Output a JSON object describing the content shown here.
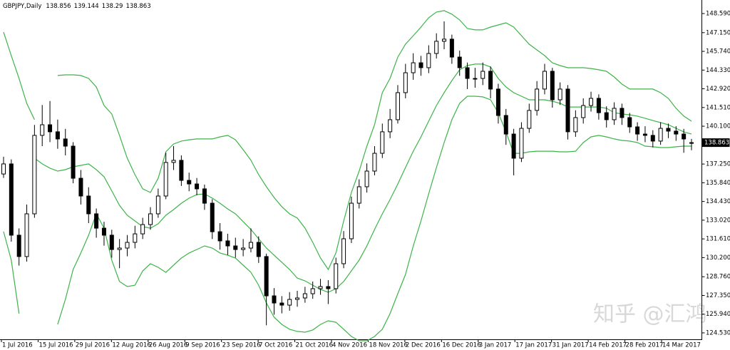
{
  "chart_data": {
    "type": "candlestick",
    "symbol": "GBPJPY,Daily",
    "open": [
      136.5,
      137.26,
      131.89,
      130.28,
      133.5,
      139.41,
      140.21,
      139.68,
      139.14,
      138.6,
      136.18,
      134.84,
      133.5,
      132.42,
      131.89,
      130.81,
      130.92,
      131.35,
      131.99,
      132.69,
      133.5,
      134.84,
      137.37,
      137.53,
      136.02,
      135.75,
      135.38,
      134.3,
      132.15,
      131.46,
      131.08,
      130.81,
      130.92,
      131.35,
      130.28,
      127.32,
      126.78,
      126.62,
      127.05,
      127.16,
      127.48,
      127.86,
      128.02,
      127.86,
      129.74,
      131.62,
      134.3,
      135.54,
      136.72,
      138.06,
      139.68,
      140.59,
      142.63,
      144.13,
      144.88,
      144.51,
      145.58,
      146.5,
      146.66,
      145.31,
      144.51,
      143.7,
      143.7,
      144.24,
      142.9,
      140.91,
      139.51,
      137.69,
      139.94,
      141.29,
      142.9,
      144.24,
      142.09,
      142.9,
      139.68,
      140.75,
      141.66,
      142.2,
      141.12,
      140.59,
      141.45,
      140.75,
      140.05,
      139.51,
      139.41,
      138.98,
      139.94,
      139.73,
      139.51,
      138.856
    ],
    "high": [
      137.8,
      137.6,
      132.4,
      134.2,
      140.2,
      141.7,
      142.0,
      140.6,
      139.9,
      138.9,
      136.8,
      135.5,
      133.9,
      132.9,
      132.3,
      131.6,
      131.9,
      132.6,
      133.2,
      134.0,
      135.4,
      138.1,
      138.6,
      137.9,
      136.6,
      136.2,
      135.7,
      134.6,
      132.8,
      132.0,
      131.7,
      131.6,
      132.4,
      131.8,
      130.5,
      127.9,
      127.3,
      127.6,
      127.7,
      128.0,
      128.4,
      128.6,
      128.5,
      130.2,
      132.2,
      134.8,
      136.1,
      137.3,
      138.6,
      140.3,
      141.4,
      143.2,
      144.8,
      145.6,
      145.4,
      146.2,
      147.1,
      148.0,
      147.0,
      145.8,
      144.9,
      144.5,
      144.9,
      144.6,
      143.3,
      141.4,
      139.9,
      140.4,
      141.8,
      143.5,
      144.8,
      144.5,
      143.4,
      143.2,
      141.3,
      142.2,
      142.7,
      142.5,
      141.6,
      141.9,
      141.8,
      141.1,
      140.4,
      140.1,
      139.8,
      140.4,
      140.3,
      140.1,
      139.9,
      139.144
    ],
    "low": [
      136.2,
      131.4,
      129.6,
      129.9,
      133.2,
      138.6,
      138.9,
      138.4,
      137.9,
      135.8,
      134.2,
      132.8,
      131.7,
      131.1,
      130.2,
      129.4,
      130.3,
      130.9,
      131.6,
      132.3,
      133.2,
      134.6,
      136.8,
      135.6,
      135.2,
      134.9,
      133.8,
      131.6,
      130.8,
      130.4,
      130.2,
      130.3,
      130.6,
      129.8,
      125.1,
      125.9,
      126.0,
      126.2,
      126.5,
      126.8,
      127.1,
      127.4,
      126.7,
      127.5,
      129.4,
      131.3,
      133.9,
      135.1,
      136.4,
      137.7,
      139.2,
      140.3,
      142.2,
      143.6,
      143.9,
      144.1,
      145.2,
      145.9,
      144.8,
      143.9,
      142.9,
      143.0,
      143.2,
      142.2,
      140.3,
      138.7,
      136.4,
      137.4,
      139.6,
      140.9,
      142.5,
      141.5,
      141.7,
      139.1,
      139.3,
      140.3,
      141.2,
      140.6,
      140.0,
      140.2,
      140.2,
      139.6,
      139.0,
      138.9,
      138.5,
      138.7,
      139.2,
      139.0,
      138.1,
      138.29
    ],
    "close": [
      137.26,
      131.89,
      130.28,
      133.5,
      139.41,
      140.21,
      139.68,
      139.14,
      138.6,
      136.18,
      134.84,
      133.5,
      132.42,
      131.89,
      130.81,
      130.92,
      131.35,
      131.99,
      132.69,
      133.5,
      134.84,
      137.37,
      137.53,
      136.02,
      135.75,
      135.38,
      134.3,
      132.15,
      131.46,
      131.08,
      130.81,
      130.92,
      131.35,
      130.28,
      127.32,
      126.78,
      126.62,
      127.05,
      127.16,
      127.48,
      127.86,
      128.02,
      127.86,
      129.74,
      131.62,
      134.3,
      135.54,
      136.72,
      138.06,
      139.68,
      140.59,
      142.63,
      144.13,
      144.88,
      144.51,
      145.58,
      146.5,
      146.66,
      145.31,
      144.51,
      143.7,
      143.7,
      144.24,
      142.9,
      140.91,
      139.51,
      137.69,
      139.94,
      141.29,
      142.9,
      144.24,
      142.09,
      142.9,
      139.68,
      140.75,
      141.66,
      142.2,
      141.12,
      140.59,
      141.45,
      140.75,
      140.05,
      139.51,
      139.41,
      138.98,
      139.94,
      139.73,
      139.51,
      139.14,
      138.863
    ],
    "up_color": "#ffffff",
    "down_color": "#000000",
    "bands": [
      {
        "color": "#3cb449",
        "values": [
          147.19,
          145.42,
          143.7,
          141.82,
          140.59,
          null,
          null,
          143.92,
          143.97,
          143.97,
          143.92,
          143.7,
          143.06,
          141.66,
          141.02,
          139.41,
          137.69,
          136.45,
          135.38,
          135.11,
          136.18,
          138.17,
          138.76,
          138.98,
          139.08,
          139.14,
          139.14,
          139.14,
          139.3,
          139.41,
          139.08,
          138.33,
          137.53,
          136.45,
          135.54,
          134.73,
          134.04,
          133.5,
          133.18,
          132.42,
          131.35,
          130.17,
          129.31,
          130.55,
          132.96,
          135.11,
          136.72,
          138.6,
          140.21,
          142.63,
          143.7,
          145.31,
          146.28,
          146.92,
          147.57,
          148.27,
          148.7,
          148.81,
          148.54,
          148.11,
          147.46,
          147.36,
          147.36,
          147.57,
          147.73,
          147.89,
          147.57,
          146.92,
          146.28,
          145.85,
          145.42,
          144.88,
          144.67,
          144.51,
          144.51,
          144.51,
          144.45,
          144.35,
          144.24,
          143.81,
          143.27,
          142.9,
          142.9,
          142.9,
          142.9,
          142.63,
          142.2,
          141.45,
          140.86,
          140.48
        ]
      },
      {
        "color": "#3cb449",
        "values": [
          null,
          null,
          null,
          null,
          137.69,
          137.26,
          136.94,
          136.72,
          136.83,
          137.04,
          137.15,
          137.26,
          136.83,
          136.29,
          135.22,
          134.14,
          133.39,
          132.96,
          132.53,
          132.42,
          132.75,
          133.39,
          133.82,
          134.3,
          134.68,
          134.95,
          135.0,
          134.68,
          134.3,
          133.87,
          133.5,
          132.91,
          132.32,
          131.62,
          130.92,
          130.38,
          129.85,
          129.31,
          128.66,
          128.45,
          128.12,
          127.8,
          127.59,
          127.86,
          128.4,
          129.2,
          130.01,
          131.08,
          132.32,
          133.5,
          134.57,
          135.75,
          136.99,
          138.22,
          139.3,
          140.48,
          141.66,
          142.63,
          143.54,
          144.35,
          144.67,
          144.78,
          144.78,
          144.56,
          143.7,
          143.06,
          142.63,
          142.36,
          142.09,
          142.09,
          142.09,
          141.98,
          141.82,
          141.55,
          141.55,
          141.55,
          141.55,
          141.55,
          141.45,
          141.12,
          141.02,
          140.96,
          140.86,
          140.7,
          140.53,
          140.37,
          140.21,
          139.94,
          139.67,
          139.51
        ]
      },
      {
        "color": "#3cb449",
        "values": [
          132.16,
          130.01,
          125.98,
          null,
          null,
          null,
          null,
          125.17,
          127.05,
          129.31,
          130.55,
          131.89,
          133.5,
          132.42,
          130.01,
          128.4,
          128.02,
          128.12,
          129.2,
          129.74,
          129.47,
          129.09,
          129.63,
          130.17,
          130.55,
          130.81,
          131.08,
          130.92,
          130.55,
          130.38,
          130.17,
          129.63,
          129.09,
          128.12,
          126.78,
          125.71,
          125.17,
          124.8,
          124.64,
          124.58,
          124.75,
          125.17,
          125.44,
          125.33,
          124.8,
          124.26,
          123.94,
          123.94,
          124.26,
          124.8,
          125.98,
          127.48,
          128.93,
          131.08,
          132.96,
          135.0,
          136.99,
          138.87,
          140.59,
          141.82,
          142.36,
          142.36,
          142.31,
          142.09,
          141.12,
          139.67,
          138.06,
          138.06,
          138.17,
          138.22,
          138.22,
          138.22,
          138.17,
          138.17,
          138.22,
          138.87,
          139.3,
          139.41,
          139.3,
          139.14,
          139.03,
          138.98,
          138.87,
          138.6,
          138.55,
          138.49,
          138.49,
          138.55,
          138.6,
          138.6
        ]
      }
    ],
    "x_labels": [
      "1 Jul 2016",
      "15 Jul 2016",
      "29 Jul 2016",
      "12 Aug 2016",
      "26 Aug 2016",
      "9 Sep 2016",
      "23 Sep 2016",
      "7 Oct 2016",
      "21 Oct 2016",
      "4 Nov 2016",
      "18 Nov 2016",
      "2 Dec 2016",
      "16 Dec 2016",
      "3 Jan 2017",
      "17 Jan 2017",
      "31 Jan 2017",
      "14 Feb 2017",
      "28 Feb 2017",
      "14 Mar 2017"
    ],
    "ylim": [
      123.83,
      149.61
    ],
    "yticks": [
      {
        "value": 148.59,
        "label": "148.590"
      },
      {
        "value": 147.15,
        "label": "147.150"
      },
      {
        "value": 145.74,
        "label": "145.740"
      },
      {
        "value": 144.33,
        "label": "144.330"
      },
      {
        "value": 142.92,
        "label": "142.920"
      },
      {
        "value": 141.51,
        "label": "141.510"
      },
      {
        "value": 140.1,
        "label": "140.100"
      },
      {
        "value": 137.25,
        "label": "137.250"
      },
      {
        "value": 135.84,
        "label": "135.840"
      },
      {
        "value": 134.43,
        "label": "134.430"
      },
      {
        "value": 133.02,
        "label": "133.020"
      },
      {
        "value": 131.61,
        "label": "131.610"
      },
      {
        "value": 130.2,
        "label": "130.200"
      },
      {
        "value": 128.76,
        "label": "128.760"
      },
      {
        "value": 127.35,
        "label": "127.350"
      },
      {
        "value": 125.94,
        "label": "125.940"
      },
      {
        "value": 124.53,
        "label": "124.530"
      }
    ]
  },
  "watermark": "知乎 @汇鸿"
}
